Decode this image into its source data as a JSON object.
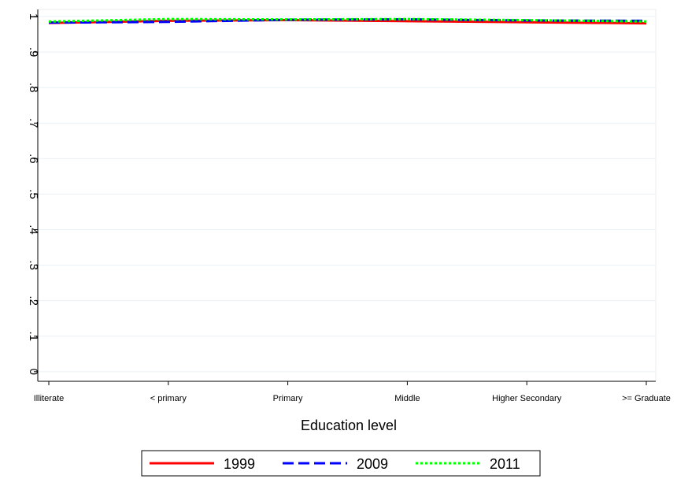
{
  "chart_data": {
    "type": "line",
    "x_label": "Education level",
    "categories": [
      "Illiterate",
      "< primary",
      "Primary",
      "Middle",
      "Higher Secondary",
      ">= Graduate"
    ],
    "series": [
      {
        "name": "1999",
        "color": "#ff0000",
        "values": [
          0.982,
          0.988,
          0.99,
          0.987,
          0.984,
          0.981
        ]
      },
      {
        "name": "2009",
        "color": "#0000ff",
        "values": [
          0.983,
          0.985,
          0.991,
          0.992,
          0.989,
          0.988
        ]
      },
      {
        "name": "2011",
        "color": "#00ff00",
        "values": [
          0.986,
          0.993,
          0.992,
          0.993,
          0.99,
          0.986
        ]
      }
    ],
    "ylim": [
      -0.027,
      1.02
    ],
    "yticks": [
      0,
      {
        "value": 0.1,
        "label": ".1"
      },
      {
        "value": 0.2,
        "label": ".2"
      },
      {
        "value": 0.3,
        "label": ".3"
      },
      {
        "value": 0.4,
        "label": ".4"
      },
      {
        "value": 0.5,
        "label": ".5"
      },
      {
        "value": 0.6,
        "label": ".6"
      },
      {
        "value": 0.7,
        "label": ".7"
      },
      {
        "value": 0.8,
        "label": ".8"
      },
      {
        "value": 0.9,
        "label": ".9"
      },
      1
    ],
    "grid": true,
    "legend": "bottom"
  }
}
